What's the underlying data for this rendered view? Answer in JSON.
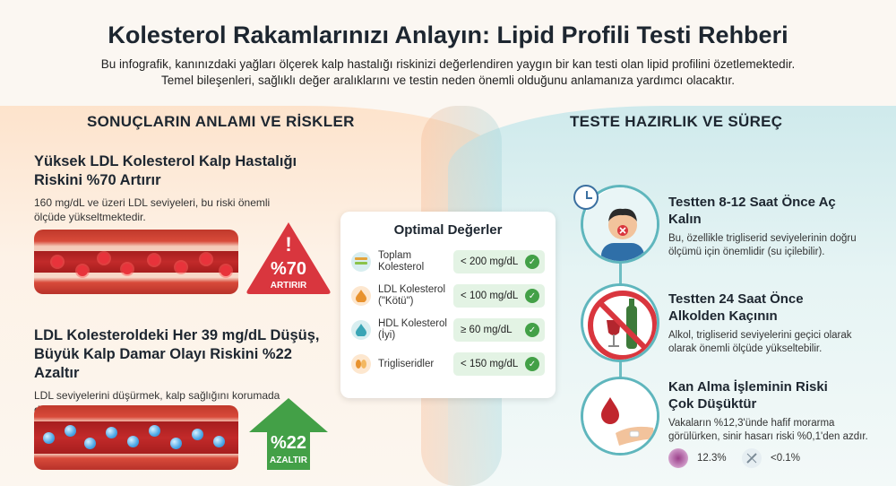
{
  "header": {
    "title": "Kolesterol Rakamlarınızı Anlayın: Lipid Profili Testi Rehberi",
    "subtitle_line1": "Bu infografik, kanınızdaki yağları ölçerek kalp hastalığı riskinizi değerlendiren yaygın bir kan testi olan lipid profilini özetlemektedir.",
    "subtitle_line2": "Temel bileşenleri, sağlıklı değer aralıklarını ve testin neden önemli olduğunu anlamanıza yardımcı olacaktır."
  },
  "left_section": {
    "heading": "SONUÇLARIN ANLAMI VE RİSKLER",
    "risk1": {
      "title": "Yüksek LDL Kolesterol Kalp Hastalığı Riskini %70 Artırır",
      "desc": "160 mg/dL ve üzeri LDL seviyeleri, bu riski önemli ölçüde yükseltmektedir.",
      "badge_value": "%70",
      "badge_label": "ARTIRIR"
    },
    "risk2": {
      "title": "LDL Kolesteroldeki Her 39 mg/dL Düşüş, Büyük Kalp Damar Olayı Riskini %22 Azaltır",
      "desc": "LDL seviyelerini düşürmek, kalp sağlığını korumada doğrudan etkilidir.",
      "badge_value": "%22",
      "badge_label": "AZALTIR"
    }
  },
  "optimal_card": {
    "title": "Optimal Değerler",
    "rows": [
      {
        "label": "Toplam Kolesterol",
        "value": "< 200 mg/dL",
        "icon": "bars-icon"
      },
      {
        "label": "LDL Kolesterol (\"Kötü\")",
        "value": "< 100 mg/dL",
        "icon": "drop-icon"
      },
      {
        "label": "HDL Kolesterol (İyi)",
        "value": "≥ 60 mg/dL",
        "icon": "drop-icon"
      },
      {
        "label": "Trigliseridler",
        "value": "< 150 mg/dL",
        "icon": "capsule-icon"
      }
    ]
  },
  "right_section": {
    "heading": "TESTE HAZIRLIK VE SÜREÇ",
    "step1": {
      "title": "Testten 8-12 Saat Önce Aç Kalın",
      "desc": "Bu, özellikle trigliserid seviyelerinin doğru ölçümü için önemlidir (su içilebilir)."
    },
    "step2": {
      "title": "Testten 24 Saat Önce Alkolden Kaçının",
      "desc": "Alkol, trigliserid seviyelerini geçici olarak olarak önemli ölçüde yükseltebilir."
    },
    "step3": {
      "title": "Kan Alma İşleminin Riski Çok Düşüktür",
      "desc": "Vakaların %12,3'ünde hafif morarma görülürken, sinir hasarı riski %0,1'den azdır.",
      "stat1": "12.3%",
      "stat2": "<0.1%"
    }
  },
  "colors": {
    "accent_orange": "#f5a86d",
    "accent_teal": "#5fb6bd",
    "danger_red": "#d9363e",
    "good_green": "#43a047"
  }
}
